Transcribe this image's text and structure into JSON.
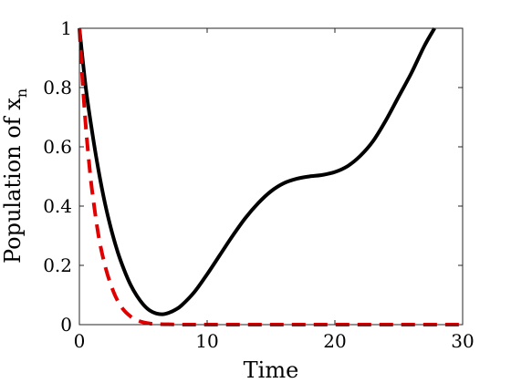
{
  "chart_data": {
    "type": "line",
    "xlabel": "Time",
    "ylabel": "Population of x",
    "ylabel_subscript": "n",
    "xlim": [
      0,
      30
    ],
    "ylim": [
      0,
      1
    ],
    "xticks": [
      0,
      10,
      20,
      30
    ],
    "xtick_labels": [
      "0",
      "10",
      "20",
      "30"
    ],
    "yticks": [
      0,
      0.2,
      0.4,
      0.6,
      0.8,
      1
    ],
    "ytick_labels": [
      "0",
      "0.2",
      "0.4",
      "0.6",
      "0.8",
      "1"
    ],
    "grid": false,
    "legend": "none",
    "series": [
      {
        "color": "#000000",
        "style": "solid",
        "x": [
          0,
          0.5,
          1,
          1.5,
          2,
          2.5,
          3,
          3.5,
          4,
          4.5,
          5,
          5.5,
          6,
          6.5,
          7,
          7.5,
          8,
          9,
          10,
          11,
          12,
          13,
          14,
          15,
          16,
          17,
          18,
          19,
          20,
          21,
          22,
          23,
          24,
          25,
          26,
          27,
          27.8
        ],
        "y": [
          1.0,
          0.8,
          0.65,
          0.52,
          0.41,
          0.32,
          0.245,
          0.185,
          0.135,
          0.097,
          0.068,
          0.048,
          0.038,
          0.035,
          0.04,
          0.05,
          0.065,
          0.11,
          0.17,
          0.235,
          0.3,
          0.36,
          0.41,
          0.45,
          0.477,
          0.492,
          0.5,
          0.505,
          0.515,
          0.535,
          0.57,
          0.62,
          0.69,
          0.77,
          0.85,
          0.94,
          1.0
        ]
      },
      {
        "color": "#e00000",
        "style": "dashed",
        "x": [
          0,
          0.25,
          0.5,
          0.75,
          1,
          1.5,
          2,
          2.5,
          3,
          3.5,
          4,
          4.5,
          5,
          5.5,
          6,
          7,
          8,
          10,
          15,
          20,
          25,
          30
        ],
        "y": [
          1.0,
          0.82,
          0.67,
          0.55,
          0.45,
          0.3,
          0.2,
          0.13,
          0.08,
          0.048,
          0.028,
          0.015,
          0.008,
          0.004,
          0.002,
          0.001,
          0.0,
          0.0,
          0.0,
          0.0,
          0.0,
          0.0
        ]
      }
    ]
  }
}
